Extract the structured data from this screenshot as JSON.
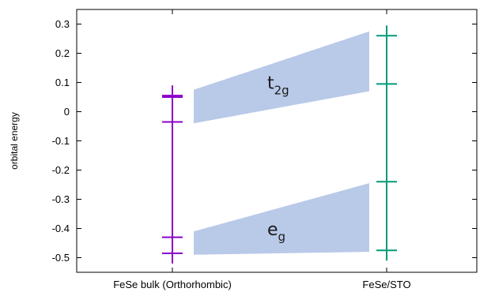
{
  "chart_data": {
    "type": "scatter",
    "ylabel": "orbital energy",
    "ylim": [
      -0.55,
      0.35
    ],
    "yticks": [
      -0.5,
      -0.4,
      -0.3,
      -0.2,
      -0.1,
      0,
      0.1,
      0.2,
      0.3
    ],
    "ytick_labels": [
      "-0.5",
      "-0.4",
      "-0.3",
      "-0.2",
      "-0.1",
      "0",
      "0.1",
      "0.2",
      "0.3"
    ],
    "categories": [
      "FeSe bulk (Orthorhombic)",
      "FeSe/STO"
    ],
    "grid": false,
    "series": [
      {
        "category": "FeSe bulk (Orthorhombic)",
        "color": "#8b00c9",
        "levels": [
          0.055,
          0.05,
          -0.035,
          -0.43,
          -0.485
        ],
        "range": [
          -0.52,
          0.09
        ]
      },
      {
        "category": "FeSe/STO",
        "color": "#009b77",
        "levels": [
          0.26,
          0.095,
          -0.24,
          -0.475
        ],
        "range": [
          -0.51,
          0.295
        ]
      }
    ],
    "bands": [
      {
        "label_main": "t",
        "label_sub": "2g",
        "color": "#b9c9e8",
        "left": [
          -0.04,
          0.075
        ],
        "right": [
          0.07,
          0.275
        ]
      },
      {
        "label_main": "e",
        "label_sub": "g",
        "color": "#b9c9e8",
        "left": [
          -0.49,
          -0.41
        ],
        "right": [
          -0.48,
          -0.245
        ]
      }
    ]
  }
}
